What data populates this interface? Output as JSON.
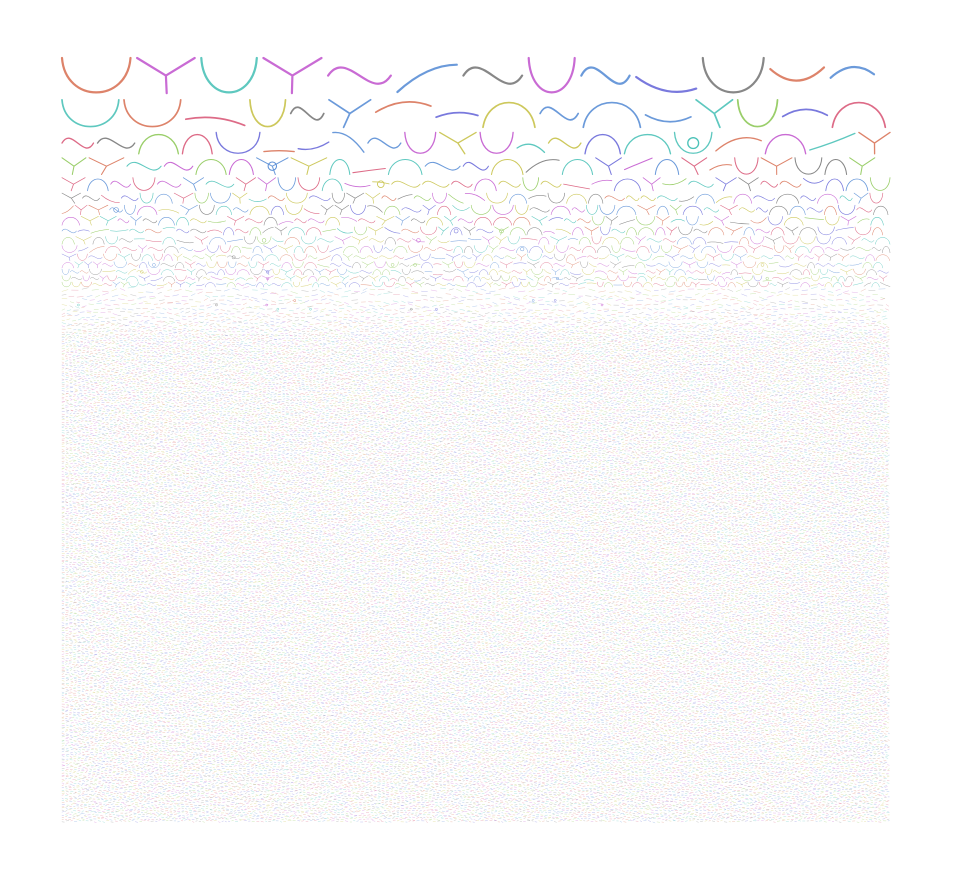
{
  "artwork": {
    "kind": "generative-strokes",
    "background": "#ffffff",
    "palette": [
      "#8fc95a",
      "#5b8fd6",
      "#c35bcf",
      "#4cc2b8",
      "#d9765a",
      "#c8c24a",
      "#6a6ad9",
      "#d95b7a",
      "#7a7a7a"
    ],
    "icon": "stroke-grid"
  }
}
